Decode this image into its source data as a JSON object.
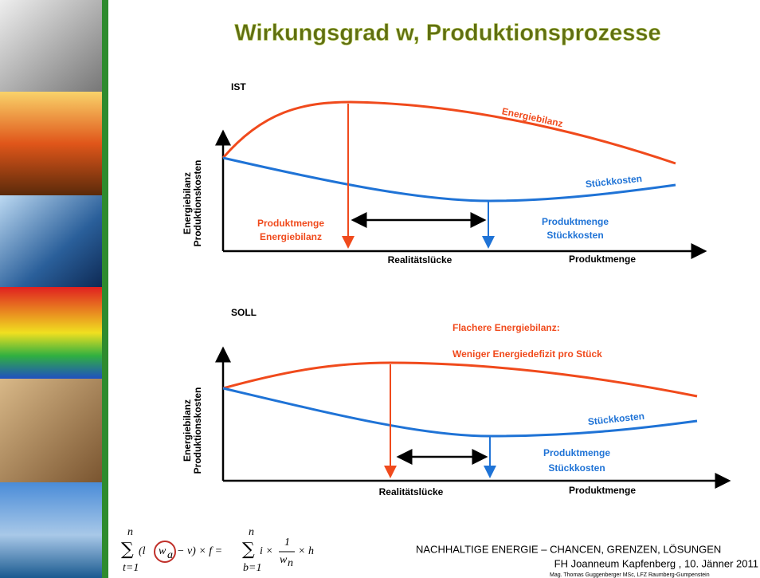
{
  "title": "Wirkungsgrad w, Produktionsprozesse",
  "diagrams": [
    {
      "label": "IST",
      "y_axis_label": [
        "Energiebilanz",
        "Produktionskosten"
      ],
      "red_curve_label": "Energiebilanz",
      "blue_curve_label": "Stückkosten",
      "red_marker_label": [
        "Produktmenge",
        "Energiebilanz"
      ],
      "blue_marker_label": [
        "Produktmenge",
        "Stückkosten"
      ],
      "gap_label": "Realitätslücke",
      "x_axis_label": "Produktmenge"
    },
    {
      "label": "SOLL",
      "y_axis_label": [
        "Energiebilanz",
        "Produktionskosten"
      ],
      "blue_curve_label": "Stückkosten",
      "blue_marker_label": [
        "Produktmenge",
        "Stückkosten"
      ],
      "gap_label": "Realitätslücke",
      "x_axis_label": "Produktmenge",
      "callout": [
        "Flachere Energiebilanz:",
        "Weniger Energiedefizit pro Stück"
      ]
    }
  ],
  "formula": {
    "left_sum": "∑",
    "left_upper": "n",
    "left_lower": "t=1",
    "left_body": "(l",
    "circled": "w",
    "circled_sub": "a",
    "left_rest": "− v) × f =",
    "right_sum": "∑",
    "right_upper": "n",
    "right_lower": "b=1",
    "right_body": "i ×",
    "frac_num": "1",
    "frac_den": "w",
    "frac_den_sub": "n",
    "right_rest": "× h"
  },
  "footer": [
    "NACHHALTIGE ENERGIE – CHANCEN, GRENZEN, LÖSUNGEN",
    "FH Joanneum Kapfenberg , 10. Jänner 2011",
    "Mag. Thomas Guggenberger MSc, LFZ Raumberg-Gumpenstein"
  ]
}
